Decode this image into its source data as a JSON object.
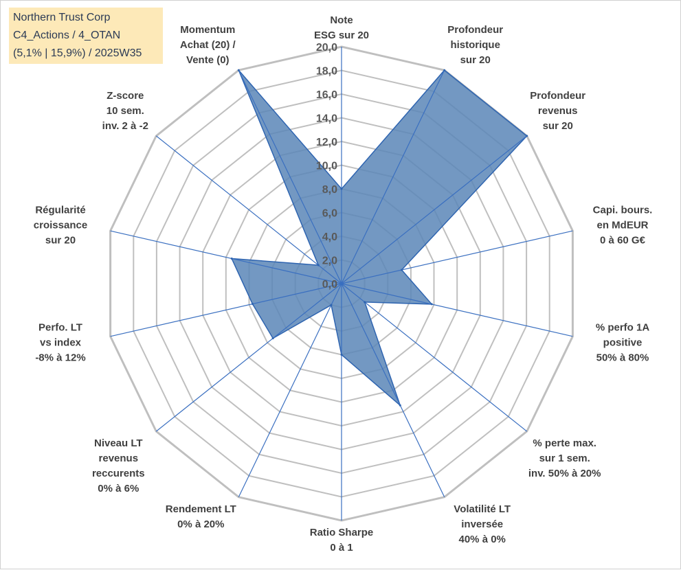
{
  "info_box": {
    "line1": "Northern Trust Corp",
    "line2": "C4_Actions / 4_OTAN",
    "line3": "(5,1% | 15,9%) / 2025W35"
  },
  "colors": {
    "fill": "#5b86b7",
    "stroke": "#2e64b0",
    "spoke": "#3a6fc0",
    "grid": "#bfbfbf",
    "info_bg": "#fde9b8"
  },
  "chart_data": {
    "type": "radar",
    "title": "",
    "rlim": [
      0,
      20
    ],
    "ticks": [
      "0,0",
      "2,0",
      "4,0",
      "6,0",
      "8,0",
      "10,0",
      "12,0",
      "14,0",
      "16,0",
      "18,0",
      "20,0"
    ],
    "grid": true,
    "axes": [
      {
        "label": [
          "Note",
          "ESG sur 20"
        ],
        "value": 8.0
      },
      {
        "label": [
          "Profondeur",
          "historique",
          "sur 20"
        ],
        "value": 20.0
      },
      {
        "label": [
          "Profondeur",
          "revenus",
          "sur 20"
        ],
        "value": 20.0
      },
      {
        "label": [
          "Capi. bours.",
          "en MdEUR",
          "0 à 60 G€"
        ],
        "value": 5.2
      },
      {
        "label": [
          "% perfo 1A",
          "positive",
          "50% à 80%"
        ],
        "value": 7.8
      },
      {
        "label": [
          "% perte max.",
          "sur 1 sem.",
          "inv. 50% à 20%"
        ],
        "value": 2.5
      },
      {
        "label": [
          "Volatilité LT",
          "inversée",
          "40% à 0%"
        ],
        "value": 11.4
      },
      {
        "label": [
          "Ratio Sharpe",
          "0 à 1"
        ],
        "value": 6.0
      },
      {
        "label": [
          "Rendement LT",
          "0% à 20%"
        ],
        "value": 2.0
      },
      {
        "label": [
          "Niveau LT",
          "revenus",
          "reccurents",
          "0% à 6%"
        ],
        "value": 7.4
      },
      {
        "label": [
          "Perfo. LT",
          "vs index",
          "-8% à 12%"
        ],
        "value": 7.7
      },
      {
        "label": [
          "Régularité",
          "croissance",
          "sur 20"
        ],
        "value": 9.5
      },
      {
        "label": [
          "Z-score",
          "10 sem.",
          "inv. 2 à -2"
        ],
        "value": 2.5
      },
      {
        "label": [
          "Momentum",
          "Achat (20) /",
          "Vente (0)"
        ],
        "value": 20.0
      }
    ]
  }
}
